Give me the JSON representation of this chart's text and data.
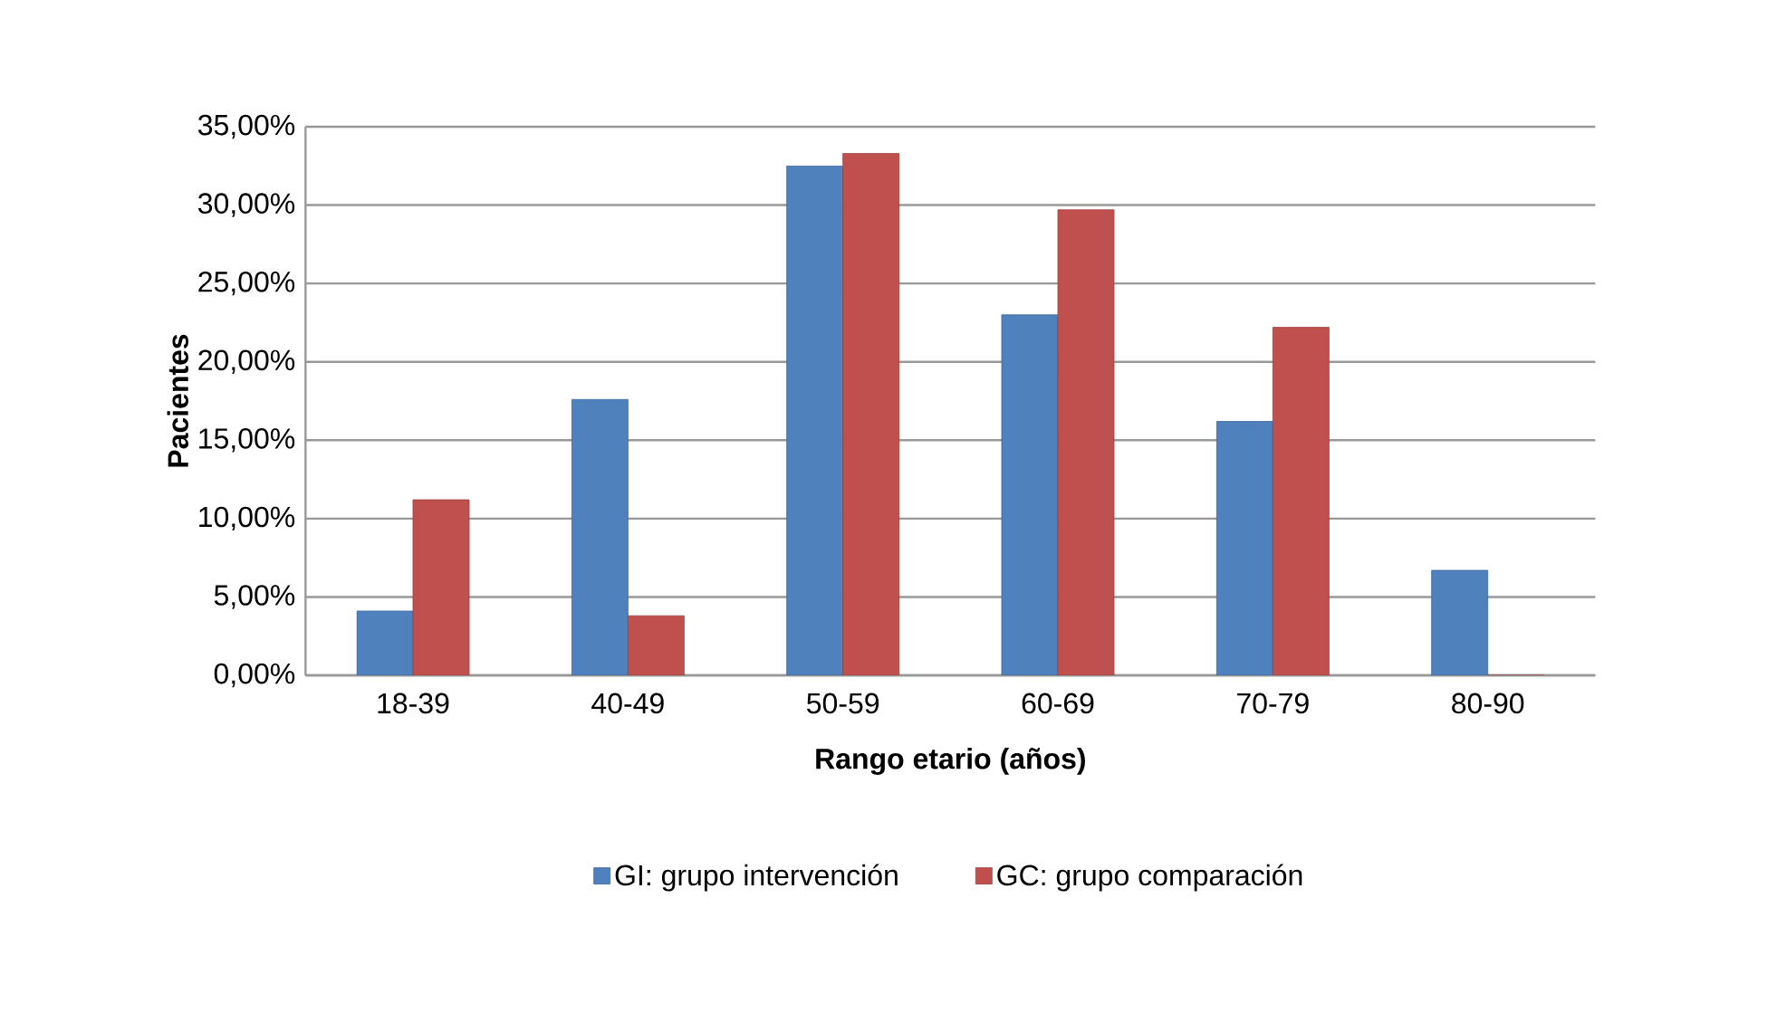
{
  "chart_data": {
    "type": "bar",
    "xlabel": "Rango etario (años)",
    "ylabel": "Pacientes",
    "categories": [
      "18-39",
      "40-49",
      "50-59",
      "60-69",
      "70-79",
      "80-90"
    ],
    "series": [
      {
        "name": "GI: grupo intervención",
        "color": "#4f81bd",
        "values": [
          4.1,
          17.6,
          32.5,
          23.0,
          16.2,
          6.7
        ]
      },
      {
        "name": "GC: grupo comparación",
        "color": "#c0504d",
        "values": [
          11.2,
          3.8,
          33.3,
          29.7,
          22.2,
          0
        ]
      }
    ],
    "ylim": [
      0,
      35
    ],
    "yticks": [
      {
        "value": 0,
        "label": "0,00%"
      },
      {
        "value": 5,
        "label": "5,00%"
      },
      {
        "value": 10,
        "label": "10,00%"
      },
      {
        "value": 15,
        "label": "15,00%"
      },
      {
        "value": 20,
        "label": "20,00%"
      },
      {
        "value": 25,
        "label": "25,00%"
      },
      {
        "value": 30,
        "label": "30,00%"
      },
      {
        "value": 35,
        "label": "35,00%"
      }
    ],
    "grid": "y",
    "legend": "bottom"
  }
}
